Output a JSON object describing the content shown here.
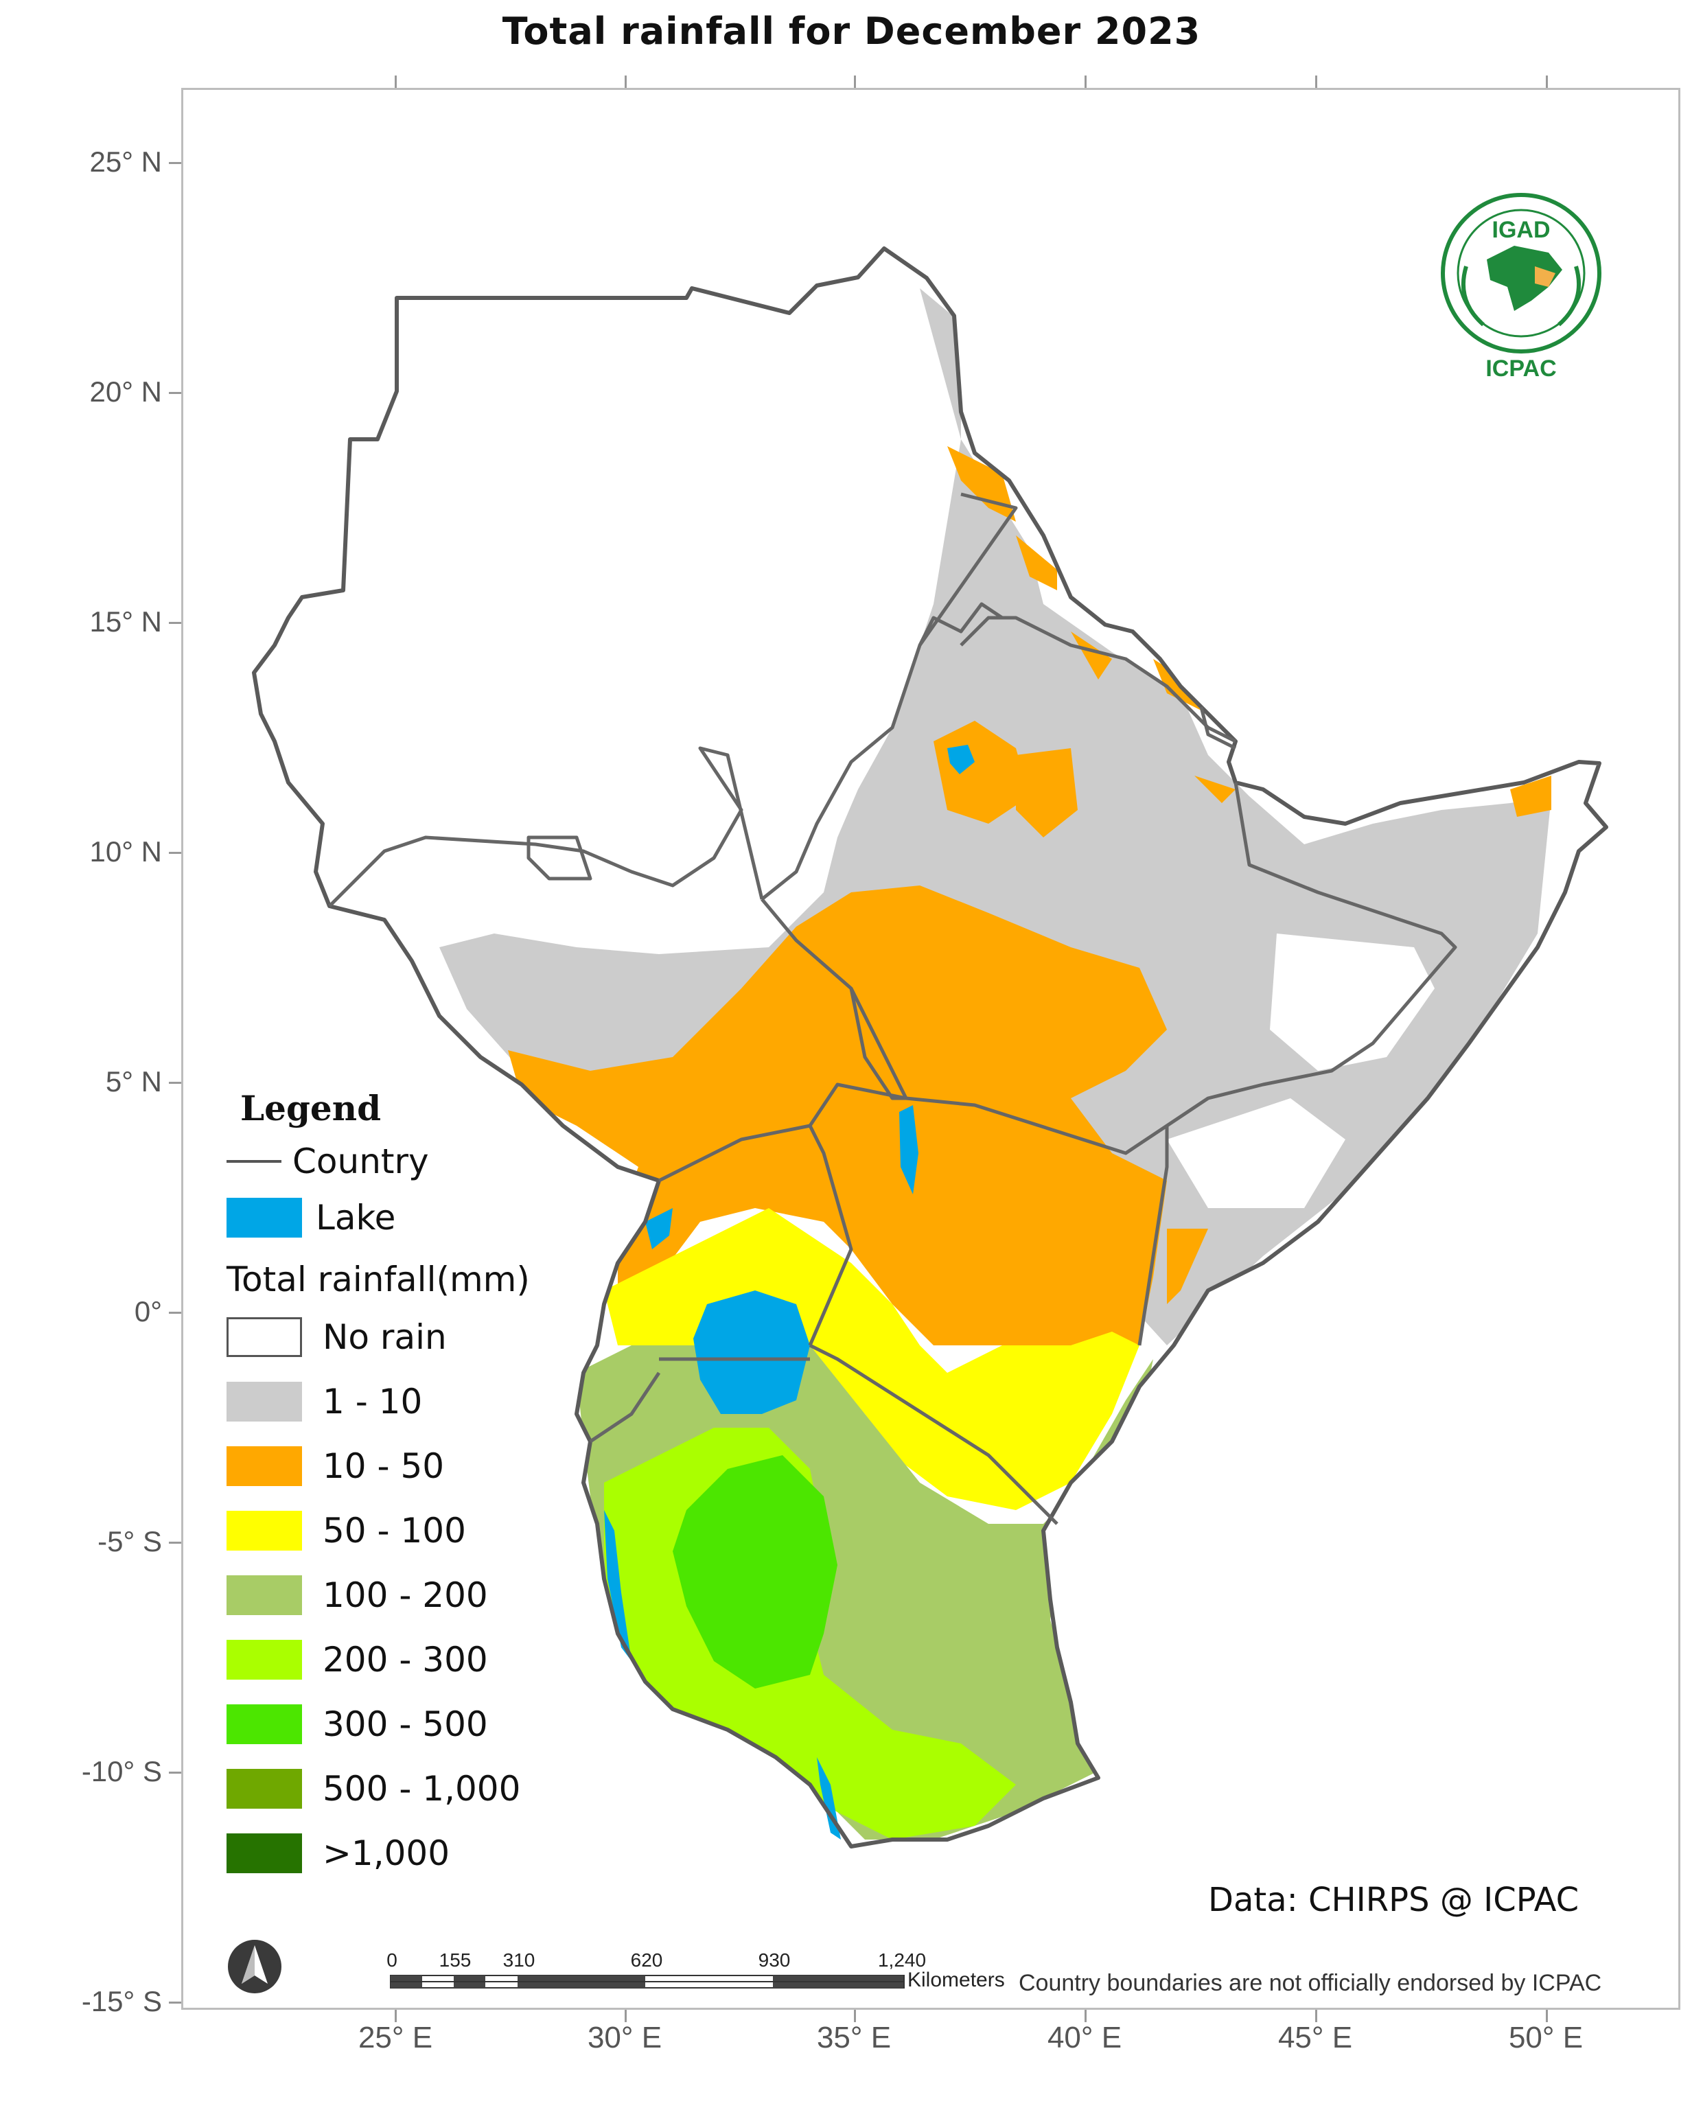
{
  "title": "Total rainfall  for  December  2023",
  "axes": {
    "lat_labels": [
      "25° N",
      "20° N",
      "15° N",
      "10° N",
      "5° N",
      "0°",
      "-5° S",
      "-10° S",
      "-15° S"
    ],
    "lon_labels": [
      "25° E",
      "30° E",
      "35° E",
      "40° E",
      "45° E",
      "50° E"
    ]
  },
  "logo": {
    "top_text": "IGAD",
    "bottom_text": "ICPAC"
  },
  "legend": {
    "title": "Legend",
    "country_label": "Country",
    "lake_label": "Lake",
    "rain_title": "Total rainfall(mm)",
    "classes": [
      {
        "label": "No rain",
        "color": "#ffffff"
      },
      {
        "label": "1 - 10",
        "color": "#cccccc"
      },
      {
        "label": "10 - 50",
        "color": "#ffa800"
      },
      {
        "label": "50 - 100",
        "color": "#ffff00"
      },
      {
        "label": "100 - 200",
        "color": "#a8cc66"
      },
      {
        "label": "200 - 300",
        "color": "#aaff00"
      },
      {
        "label": "300 - 500",
        "color": "#4ce600"
      },
      {
        "label": "500 - 1,000",
        "color": "#6fa800"
      },
      {
        "label": ">1,000",
        "color": "#267300"
      }
    ],
    "lake_color": "#00a6e6"
  },
  "source": "Data: CHIRPS @ ICPAC",
  "disclaimer": "Country boundaries are not officially endorsed by ICPAC",
  "scale_bar": {
    "labels": [
      "0",
      "155",
      "310",
      "620",
      "930",
      "1,240"
    ],
    "unit": "Kilometers"
  },
  "north_arrow": "north-arrow-icon"
}
